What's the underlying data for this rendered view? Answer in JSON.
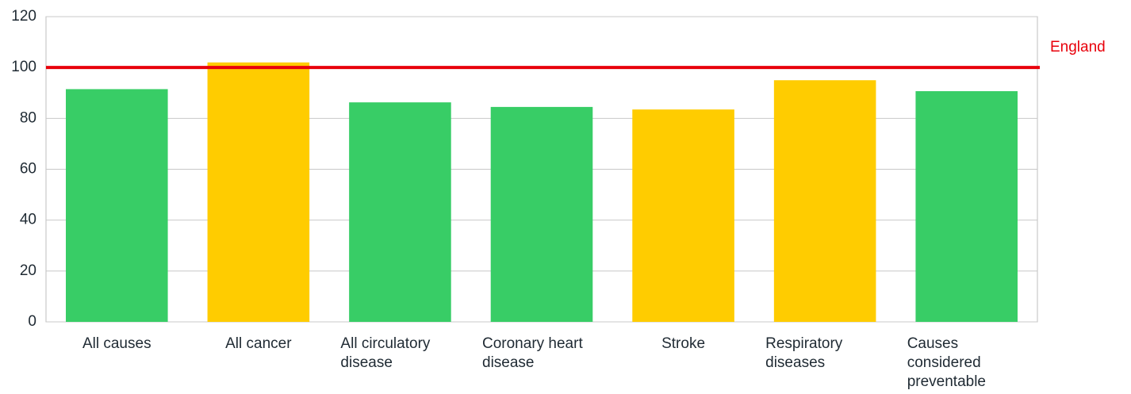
{
  "chart_data": {
    "type": "bar",
    "categories": [
      "All causes",
      "All cancer",
      "All circulatory disease",
      "Coronary heart disease",
      "Stroke",
      "Respiratory diseases",
      "Causes considered preventable"
    ],
    "values": [
      91.5,
      102,
      86.3,
      84.5,
      83.5,
      95,
      90.7
    ],
    "colors": [
      "#38cd66",
      "#ffcc00",
      "#38cd66",
      "#38cd66",
      "#ffcc00",
      "#ffcc00",
      "#38cd66"
    ],
    "ylim": [
      0,
      120
    ],
    "yticks": [
      0,
      20,
      40,
      60,
      80,
      100,
      120
    ],
    "grid": true,
    "reference_line": {
      "value": 100,
      "label": "England",
      "color": "#e8000b"
    }
  }
}
